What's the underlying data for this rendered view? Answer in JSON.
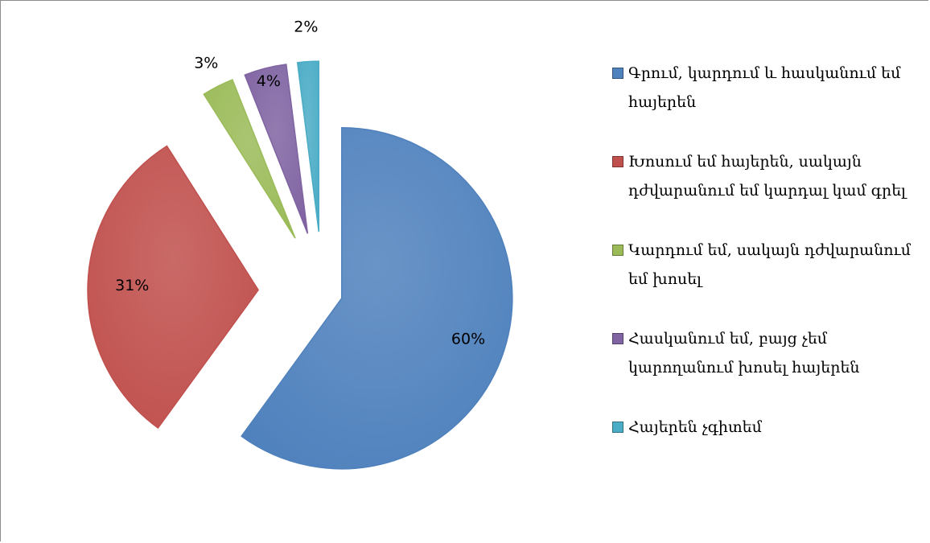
{
  "chart_data": {
    "type": "pie",
    "categories": [
      "Գրում, կարդում և հասկանում եմ հայերեն",
      "Խոսում եմ հայերեն, սակայն դժվարանում եմ կարդալ կամ գրել",
      "Կարդում եմ, սակայն դժվարանում եմ խոսել",
      "Հասկանում եմ, բայց չեմ կարողանում խոսել հայերեն",
      "Հայերեն չգիտեմ"
    ],
    "values": [
      60,
      31,
      3,
      4,
      2
    ],
    "value_labels": [
      "60%",
      "31%",
      "3%",
      "4%",
      "2%"
    ],
    "colors": [
      "#4f81bd",
      "#c0504d",
      "#9bbb59",
      "#8064a2",
      "#4bacc6"
    ],
    "legend": "right"
  }
}
